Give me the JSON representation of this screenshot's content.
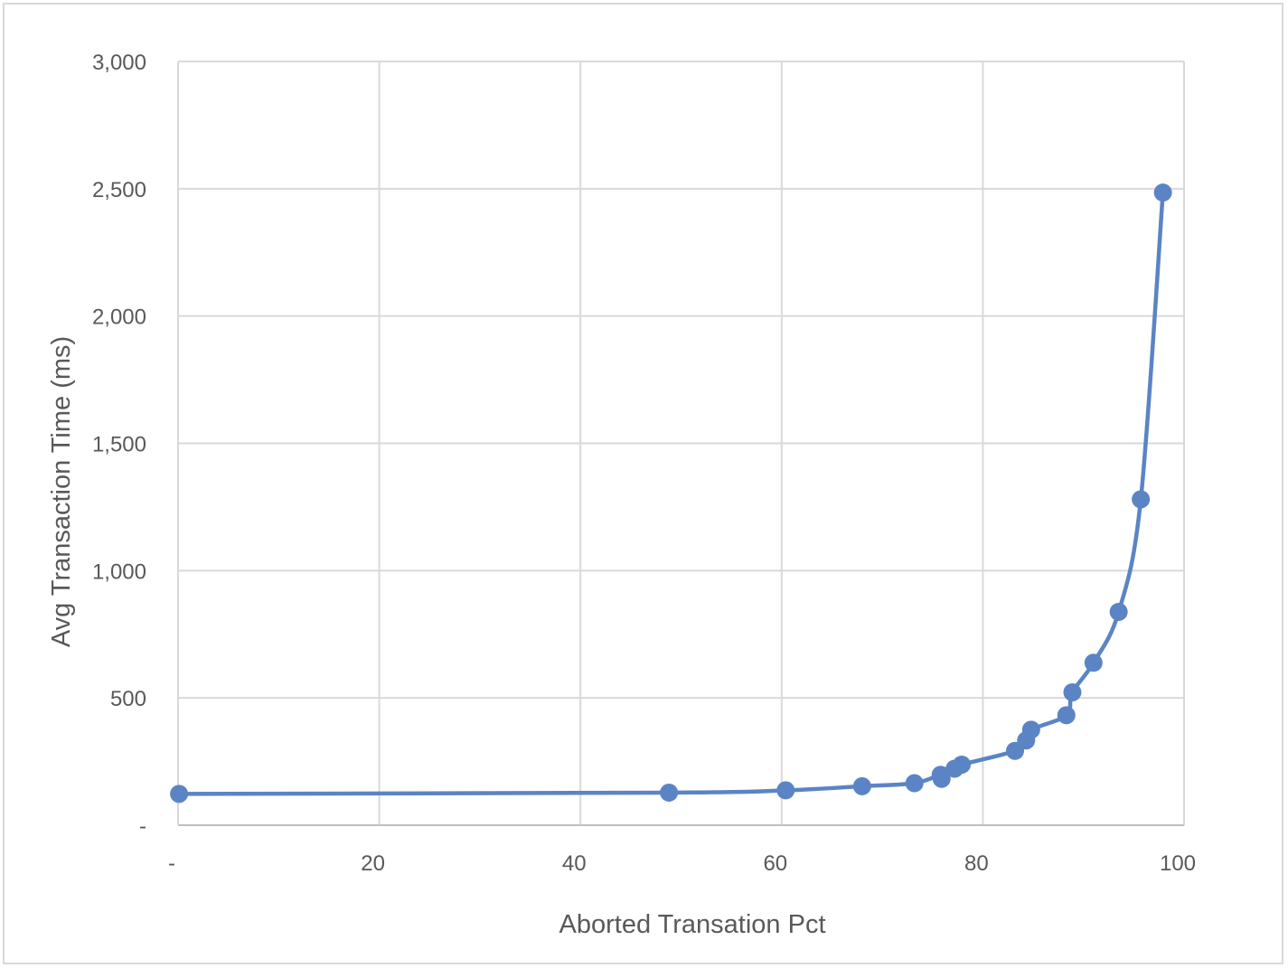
{
  "chart_data": {
    "type": "scatter",
    "title": "",
    "xlabel": "Aborted Transation Pct",
    "ylabel": "Avg Transaction Time (ms)",
    "xlim": [
      0,
      100
    ],
    "ylim": [
      0,
      3000
    ],
    "x_ticks": [
      0,
      20,
      40,
      60,
      80,
      100
    ],
    "x_tick_labels": [
      "-",
      "20",
      "40",
      "60",
      "80",
      "100"
    ],
    "y_ticks": [
      0,
      500,
      1000,
      1500,
      2000,
      2500,
      3000
    ],
    "y_tick_labels": [
      "-",
      "500",
      "1,000",
      "1,500",
      "2,000",
      "2,500",
      "3,000"
    ],
    "grid": true,
    "line_style": "smoothed line with markers",
    "color": "#5b84c4",
    "series": [
      {
        "x": [
          0.1,
          48.8,
          60.4,
          68.0,
          73.2,
          75.8,
          75.9,
          77.2,
          77.9,
          83.2,
          84.3,
          84.8,
          88.3,
          88.9,
          91.0,
          93.5,
          95.7,
          97.9
        ],
        "y": [
          123,
          128,
          137,
          153,
          165,
          198,
          182,
          222,
          238,
          292,
          333,
          375,
          432,
          522,
          638,
          838,
          1280,
          2485
        ]
      }
    ]
  }
}
